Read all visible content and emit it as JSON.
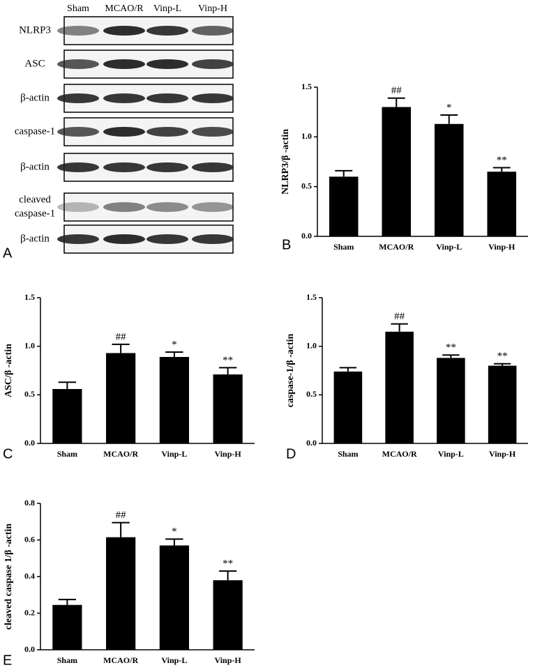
{
  "blot": {
    "panel": "A",
    "lanes": [
      "Sham",
      "MCAO/R",
      "Vinp-L",
      "Vinp-H"
    ],
    "rows": [
      [
        "NLRP3"
      ],
      [
        "ASC"
      ],
      [
        "β-actin"
      ],
      [
        "caspase-1"
      ],
      [
        "β-actin"
      ],
      [
        "cleaved",
        "caspase-1"
      ],
      [
        "β-actin"
      ]
    ]
  },
  "chart_data": [
    {
      "type": "bar",
      "panel": "B",
      "y_label": "NLRP3/β -actin",
      "categories": [
        "Sham",
        "MCAO/R",
        "Vinp-L",
        "Vinp-H"
      ],
      "values": [
        0.6,
        1.3,
        1.13,
        0.65
      ],
      "errors": [
        0.06,
        0.09,
        0.09,
        0.04
      ],
      "annotations": [
        null,
        "##",
        "*",
        "**"
      ],
      "color": "#000000",
      "ylim": [
        0,
        1.5
      ],
      "yticks": [
        {
          "value": 0,
          "label": "0.0"
        },
        0.5,
        {
          "value": 1,
          "label": "1.0"
        },
        1.5
      ]
    },
    {
      "type": "bar",
      "panel": "C",
      "y_label": "ASC/β -actin",
      "categories": [
        "Sham",
        "MCAO/R",
        "Vinp-L",
        "Vinp-H"
      ],
      "values": [
        0.56,
        0.93,
        0.89,
        0.71
      ],
      "errors": [
        0.07,
        0.09,
        0.05,
        0.07
      ],
      "annotations": [
        null,
        "##",
        "*",
        "**"
      ],
      "color": "#000000",
      "ylim": [
        0,
        1.5
      ],
      "yticks": [
        {
          "value": 0,
          "label": "0.0"
        },
        0.5,
        {
          "value": 1,
          "label": "1.0"
        },
        1.5
      ]
    },
    {
      "type": "bar",
      "panel": "D",
      "y_label": "caspase-1/β -actin",
      "categories": [
        "Sham",
        "MCAO/R",
        "Vinp-L",
        "Vinp-H"
      ],
      "values": [
        0.74,
        1.15,
        0.88,
        0.8
      ],
      "errors": [
        0.04,
        0.08,
        0.03,
        0.02
      ],
      "annotations": [
        null,
        "##",
        "**",
        "**"
      ],
      "color": "#000000",
      "ylim": [
        0,
        1.5
      ],
      "yticks": [
        {
          "value": 0,
          "label": "0.0"
        },
        0.5,
        {
          "value": 1,
          "label": "1.0"
        },
        1.5
      ]
    },
    {
      "type": "bar",
      "panel": "E",
      "y_label": "cleaved caspase 1/β -actin",
      "categories": [
        "Sham",
        "MCAO/R",
        "Vinp-L",
        "Vinp-H"
      ],
      "values": [
        0.245,
        0.615,
        0.57,
        0.38
      ],
      "errors": [
        0.03,
        0.08,
        0.035,
        0.05
      ],
      "annotations": [
        null,
        "##",
        "*",
        "**"
      ],
      "color": "#000000",
      "ylim": [
        0,
        0.8
      ],
      "yticks": [
        {
          "value": 0,
          "label": "0.0"
        },
        0.2,
        0.4,
        0.6,
        0.8
      ]
    }
  ]
}
